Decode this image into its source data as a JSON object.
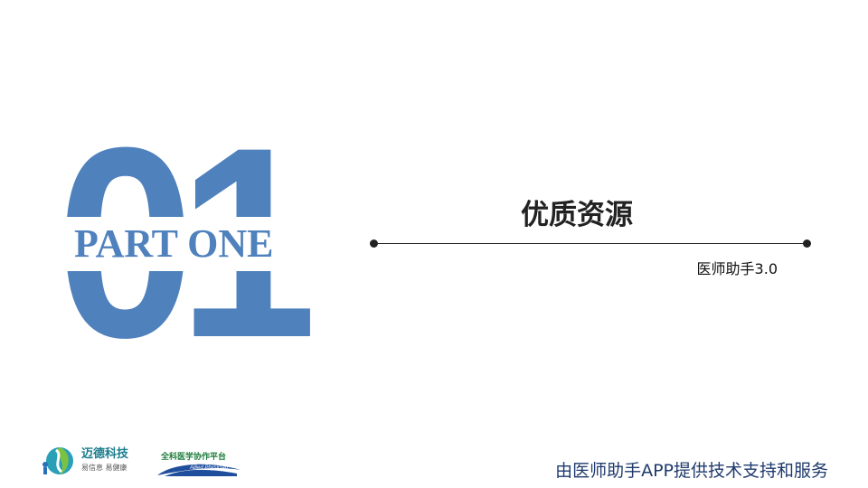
{
  "slide": {
    "big_number": "01",
    "part_label": "PART ONE",
    "title": "优质资源",
    "subtitle": "医师助手3.0",
    "footer": "由医师助手APP提供技术支持和服务"
  },
  "logos": {
    "company_name": "迈德科技",
    "company_slogan": "易信息 易健康",
    "platform_name": "全科医学协作平台",
    "platform_english": "Allied Physician"
  },
  "colors": {
    "accent_blue": "#4f81bd",
    "text_dark": "#222222",
    "footer_navy": "#1f3a6e",
    "logo_teal": "#1a7c8c",
    "logo_green": "#1e7d3c"
  }
}
